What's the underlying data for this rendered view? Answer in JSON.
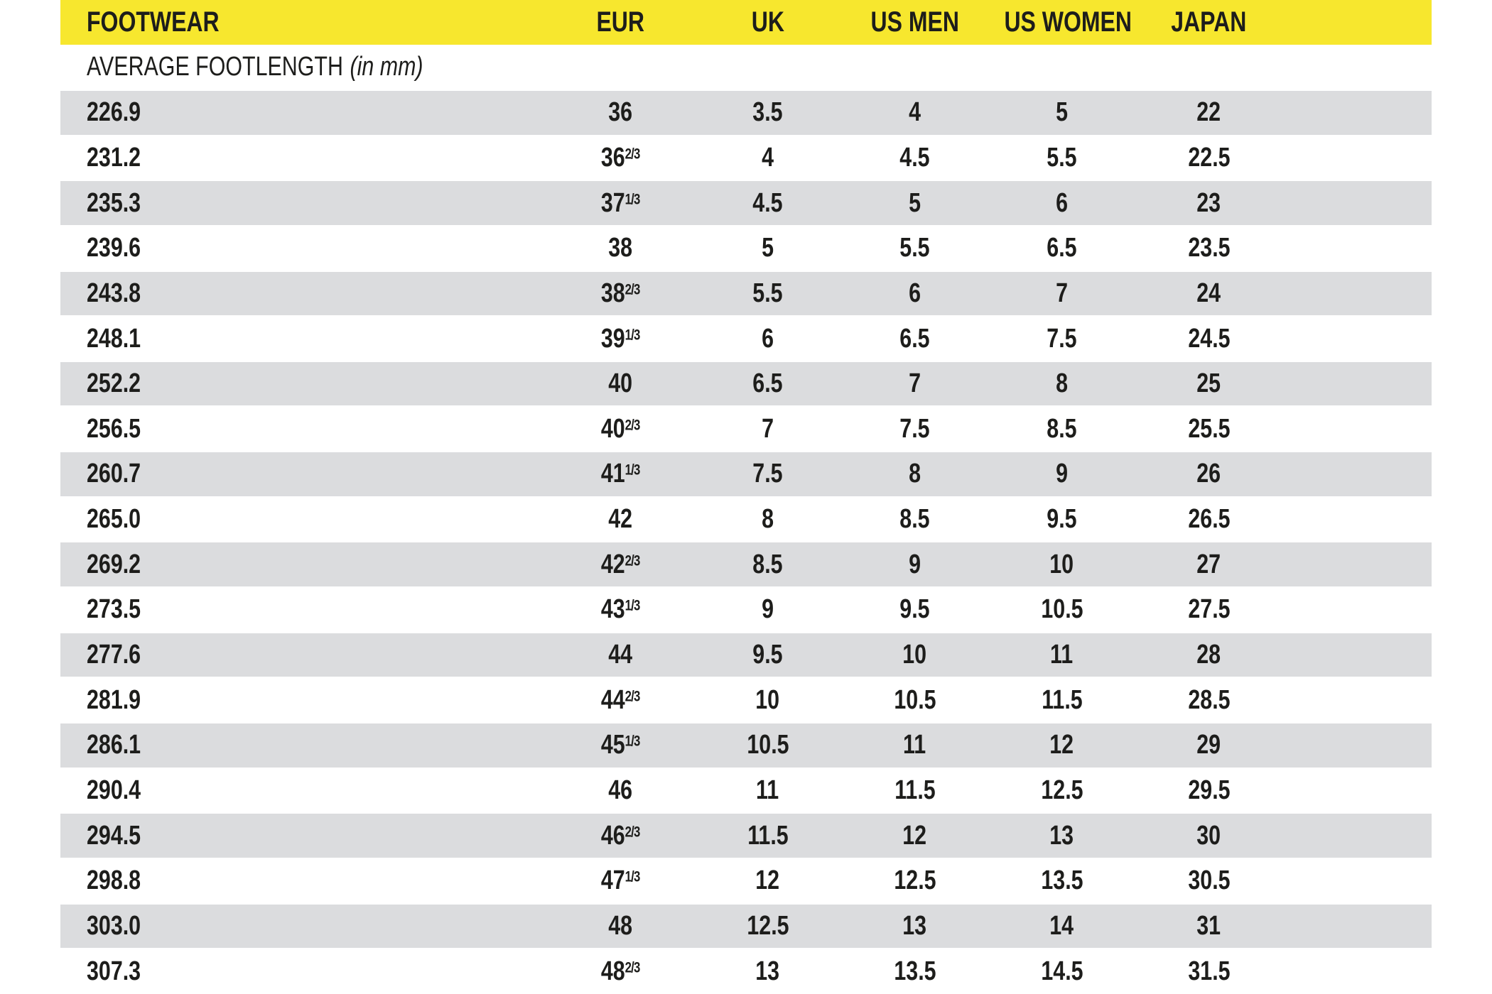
{
  "colors": {
    "header_bg": "#F7E72E",
    "row_alt_bg": "#DBDCDE",
    "row_bg": "#FFFFFF",
    "text": "#1D1D1B",
    "page_bg": "#FFFFFF"
  },
  "header": {
    "columns": [
      "FOOTWEAR",
      "EUR",
      "UK",
      "US MEN",
      "US WOMEN",
      "JAPAN"
    ]
  },
  "subtitle": {
    "label": "AVERAGE FOOTLENGTH",
    "unit_note": "(in mm)"
  },
  "table": {
    "column_keys": [
      "footlength_mm",
      "eur",
      "uk",
      "us_men",
      "us_women",
      "japan"
    ],
    "rows": [
      {
        "footlength_mm": "226.9",
        "eur": "36",
        "eur_fraction": "",
        "uk": "3.5",
        "us_men": "4",
        "us_women": "5",
        "japan": "22"
      },
      {
        "footlength_mm": "231.2",
        "eur": "36",
        "eur_fraction": "2/3",
        "uk": "4",
        "us_men": "4.5",
        "us_women": "5.5",
        "japan": "22.5"
      },
      {
        "footlength_mm": "235.3",
        "eur": "37",
        "eur_fraction": "1/3",
        "uk": "4.5",
        "us_men": "5",
        "us_women": "6",
        "japan": "23"
      },
      {
        "footlength_mm": "239.6",
        "eur": "38",
        "eur_fraction": "",
        "uk": "5",
        "us_men": "5.5",
        "us_women": "6.5",
        "japan": "23.5"
      },
      {
        "footlength_mm": "243.8",
        "eur": "38",
        "eur_fraction": "2/3",
        "uk": "5.5",
        "us_men": "6",
        "us_women": "7",
        "japan": "24"
      },
      {
        "footlength_mm": "248.1",
        "eur": "39",
        "eur_fraction": "1/3",
        "uk": "6",
        "us_men": "6.5",
        "us_women": "7.5",
        "japan": "24.5"
      },
      {
        "footlength_mm": "252.2",
        "eur": "40",
        "eur_fraction": "",
        "uk": "6.5",
        "us_men": "7",
        "us_women": "8",
        "japan": "25"
      },
      {
        "footlength_mm": "256.5",
        "eur": "40",
        "eur_fraction": "2/3",
        "uk": "7",
        "us_men": "7.5",
        "us_women": "8.5",
        "japan": "25.5"
      },
      {
        "footlength_mm": "260.7",
        "eur": "41",
        "eur_fraction": "1/3",
        "uk": "7.5",
        "us_men": "8",
        "us_women": "9",
        "japan": "26"
      },
      {
        "footlength_mm": "265.0",
        "eur": "42",
        "eur_fraction": "",
        "uk": "8",
        "us_men": "8.5",
        "us_women": "9.5",
        "japan": "26.5"
      },
      {
        "footlength_mm": "269.2",
        "eur": "42",
        "eur_fraction": "2/3",
        "uk": "8.5",
        "us_men": "9",
        "us_women": "10",
        "japan": "27"
      },
      {
        "footlength_mm": "273.5",
        "eur": "43",
        "eur_fraction": "1/3",
        "uk": "9",
        "us_men": "9.5",
        "us_women": "10.5",
        "japan": "27.5"
      },
      {
        "footlength_mm": "277.6",
        "eur": "44",
        "eur_fraction": "",
        "uk": "9.5",
        "us_men": "10",
        "us_women": "11",
        "japan": "28"
      },
      {
        "footlength_mm": "281.9",
        "eur": "44",
        "eur_fraction": "2/3",
        "uk": "10",
        "us_men": "10.5",
        "us_women": "11.5",
        "japan": "28.5"
      },
      {
        "footlength_mm": "286.1",
        "eur": "45",
        "eur_fraction": "1/3",
        "uk": "10.5",
        "us_men": "11",
        "us_women": "12",
        "japan": "29"
      },
      {
        "footlength_mm": "290.4",
        "eur": "46",
        "eur_fraction": "",
        "uk": "11",
        "us_men": "11.5",
        "us_women": "12.5",
        "japan": "29.5"
      },
      {
        "footlength_mm": "294.5",
        "eur": "46",
        "eur_fraction": "2/3",
        "uk": "11.5",
        "us_men": "12",
        "us_women": "13",
        "japan": "30"
      },
      {
        "footlength_mm": "298.8",
        "eur": "47",
        "eur_fraction": "1/3",
        "uk": "12",
        "us_men": "12.5",
        "us_women": "13.5",
        "japan": "30.5"
      },
      {
        "footlength_mm": "303.0",
        "eur": "48",
        "eur_fraction": "",
        "uk": "12.5",
        "us_men": "13",
        "us_women": "14",
        "japan": "31"
      },
      {
        "footlength_mm": "307.3",
        "eur": "48",
        "eur_fraction": "2/3",
        "uk": "13",
        "us_men": "13.5",
        "us_women": "14.5",
        "japan": "31.5"
      }
    ]
  }
}
